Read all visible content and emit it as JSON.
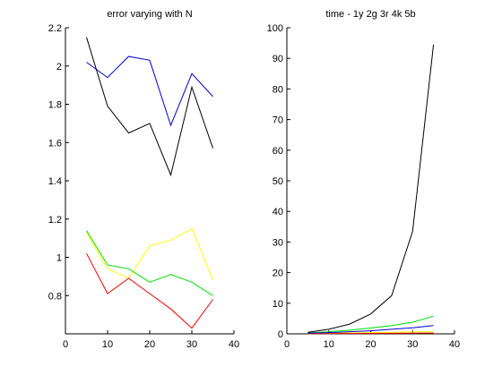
{
  "chart_data": [
    {
      "type": "line",
      "title": "error varying with N",
      "xlabel": "",
      "ylabel": "",
      "xlim": [
        0,
        40
      ],
      "ylim": [
        0.6,
        2.2
      ],
      "xticks": [
        0,
        10,
        20,
        30,
        40
      ],
      "yticks": [
        0.8,
        1,
        1.2,
        1.4,
        1.6,
        1.8,
        2,
        2.2
      ],
      "xtick_labels": [
        "0",
        "10",
        "20",
        "30",
        "40"
      ],
      "ytick_labels": [
        "0.8",
        "1",
        "1.2",
        "1.4",
        "1.6",
        "1.8",
        "2",
        "2.2"
      ],
      "x": [
        5,
        10,
        15,
        20,
        25,
        30,
        35
      ],
      "series": [
        {
          "color": "#0000cc",
          "values": [
            2.02,
            1.94,
            2.05,
            2.03,
            1.69,
            1.96,
            1.84
          ]
        },
        {
          "color": "#000000",
          "values": [
            2.15,
            1.79,
            1.65,
            1.7,
            1.43,
            1.89,
            1.57
          ]
        },
        {
          "color": "#ffff00",
          "values": [
            1.13,
            0.94,
            0.89,
            1.06,
            1.09,
            1.15,
            0.88
          ]
        },
        {
          "color": "#00dd00",
          "values": [
            1.14,
            0.96,
            0.94,
            0.87,
            0.91,
            0.87,
            0.8
          ]
        },
        {
          "color": "#ee0000",
          "values": [
            1.02,
            0.81,
            0.89,
            0.81,
            0.73,
            0.63,
            0.78
          ]
        }
      ],
      "grid": false
    },
    {
      "type": "line",
      "title": "time - 1y 2g 3r 4k 5b",
      "xlabel": "",
      "ylabel": "",
      "xlim": [
        0,
        40
      ],
      "ylim": [
        0,
        100
      ],
      "xticks": [
        0,
        10,
        20,
        30,
        40
      ],
      "yticks": [
        0,
        10,
        20,
        30,
        40,
        50,
        60,
        70,
        80,
        90,
        100
      ],
      "xtick_labels": [
        "0",
        "10",
        "20",
        "30",
        "40"
      ],
      "ytick_labels": [
        "0",
        "10",
        "20",
        "30",
        "40",
        "50",
        "60",
        "70",
        "80",
        "90",
        "100"
      ],
      "x": [
        5,
        10,
        15,
        20,
        25,
        30,
        35
      ],
      "series": [
        {
          "color": "#ffff00",
          "values": [
            0.1,
            0.2,
            0.3,
            0.4,
            0.5,
            0.6,
            0.7
          ]
        },
        {
          "color": "#00dd00",
          "values": [
            0.3,
            0.7,
            1.2,
            1.9,
            2.7,
            3.8,
            5.8
          ]
        },
        {
          "color": "#ee0000",
          "values": [
            0.05,
            0.1,
            0.12,
            0.15,
            0.18,
            0.2,
            0.25
          ]
        },
        {
          "color": "#000000",
          "values": [
            0.5,
            1.5,
            3.2,
            6.5,
            12.5,
            33.5,
            94.5
          ]
        },
        {
          "color": "#0000cc",
          "values": [
            0.2,
            0.4,
            0.7,
            1.0,
            1.5,
            2.0,
            2.7
          ]
        }
      ],
      "grid": false
    }
  ]
}
